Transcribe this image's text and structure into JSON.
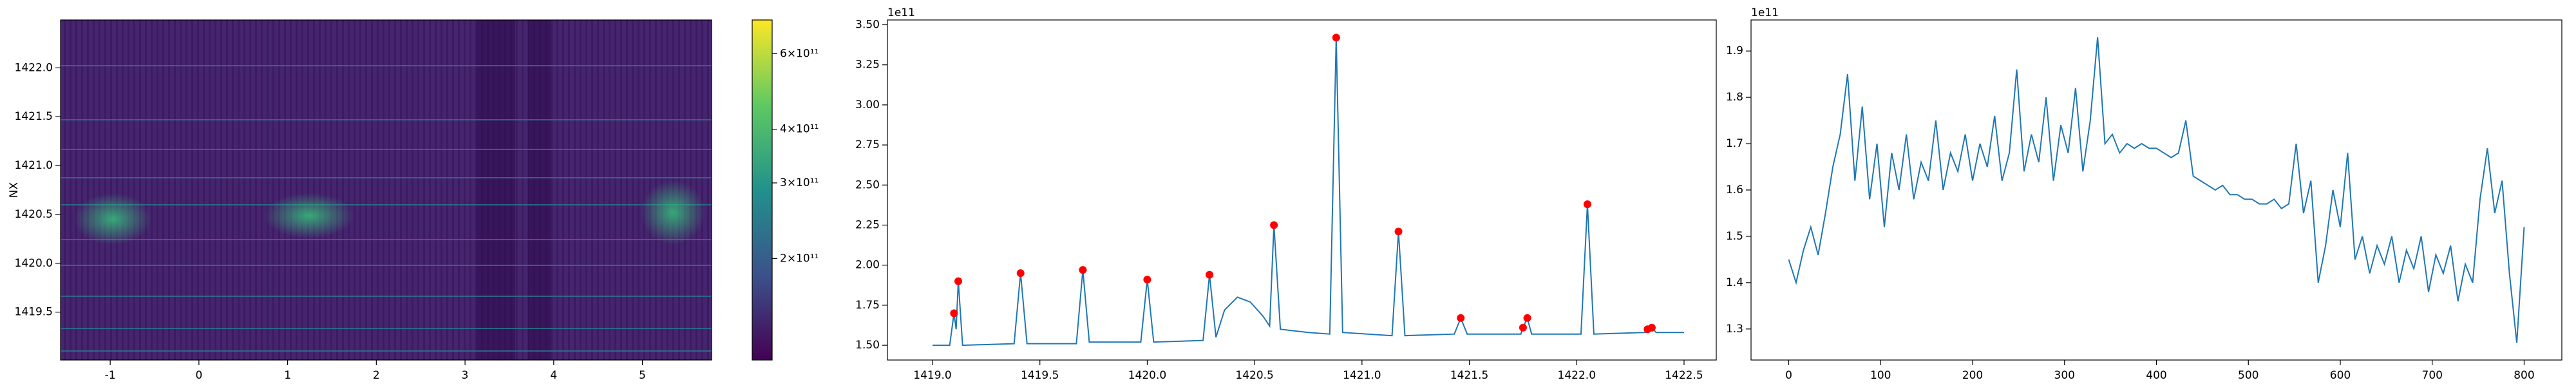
{
  "chart_data": [
    {
      "type": "heatmap",
      "ylabel": "NX",
      "xlim": [
        -1.56,
        5.78
      ],
      "ylim": [
        1419.01,
        1422.49
      ],
      "xticks": [
        -1,
        0,
        1,
        2,
        3,
        4,
        5
      ],
      "yticks": [
        {
          "value": 1419.5,
          "label": "1419.5"
        },
        {
          "value": 1420.0,
          "label": "1420.0"
        },
        {
          "value": 1420.5,
          "label": "1420.5"
        },
        {
          "value": 1421.0,
          "label": "1421.0"
        },
        {
          "value": 1421.5,
          "label": "1421.5"
        },
        {
          "value": 1422.0,
          "label": "1422.0"
        }
      ],
      "colorbar": {
        "log": true,
        "clim": [
          116000000000,
          719000000000
        ],
        "ticks": [
          {
            "value": 200000000000,
            "label": "2×10¹¹"
          },
          {
            "value": 300000000000,
            "label": "3×10¹¹"
          },
          {
            "value": 400000000000,
            "label": "4×10¹¹"
          },
          {
            "value": 600000000000,
            "label": "6×10¹¹"
          }
        ]
      }
    },
    {
      "type": "line",
      "offset_text": "1e11",
      "xlim": [
        1418.79,
        1422.65
      ],
      "ylim": [
        1.408,
        3.53
      ],
      "xticks": [
        {
          "value": 1419.0,
          "label": "1419.0"
        },
        1419.5,
        {
          "value": 1420.0,
          "label": "1420.0"
        },
        1420.5,
        {
          "value": 1421.0,
          "label": "1421.0"
        },
        1421.5,
        {
          "value": 1422.0,
          "label": "1422.0"
        },
        1422.5
      ],
      "yticks": [
        {
          "value": 1.5,
          "label": "1.50"
        },
        {
          "value": 1.75,
          "label": "1.75"
        },
        {
          "value": 2.0,
          "label": "2.00"
        },
        {
          "value": 2.25,
          "label": "2.25"
        },
        {
          "value": 2.5,
          "label": "2.50"
        },
        {
          "value": 2.75,
          "label": "2.75"
        },
        {
          "value": 3.0,
          "label": "3.00"
        },
        {
          "value": 3.25,
          "label": "3.25"
        },
        {
          "value": 3.5,
          "label": "3.50"
        }
      ],
      "series": [
        {
          "color": "#1f77b4",
          "x": [
            1419.0,
            1419.08,
            1419.1,
            1419.11,
            1419.12,
            1419.14,
            1419.38,
            1419.41,
            1419.44,
            1419.67,
            1419.7,
            1419.73,
            1419.97,
            1420.0,
            1420.03,
            1420.26,
            1420.29,
            1420.32,
            1420.36,
            1420.42,
            1420.48,
            1420.54,
            1420.57,
            1420.59,
            1420.62,
            1420.75,
            1420.85,
            1420.88,
            1420.91,
            1421.14,
            1421.17,
            1421.2,
            1421.43,
            1421.46,
            1421.49,
            1421.74,
            1421.75,
            1421.77,
            1421.79,
            1422.02,
            1422.05,
            1422.08,
            1422.32,
            1422.33,
            1422.35,
            1422.37,
            1422.5
          ],
          "values": [
            1.5,
            1.5,
            1.7,
            1.6,
            1.9,
            1.5,
            1.51,
            1.95,
            1.51,
            1.51,
            1.97,
            1.52,
            1.52,
            1.91,
            1.52,
            1.53,
            1.94,
            1.55,
            1.72,
            1.8,
            1.77,
            1.68,
            1.62,
            2.25,
            1.6,
            1.58,
            1.57,
            3.42,
            1.58,
            1.56,
            2.21,
            1.56,
            1.57,
            1.67,
            1.57,
            1.57,
            1.61,
            1.67,
            1.57,
            1.57,
            2.38,
            1.57,
            1.58,
            1.6,
            1.61,
            1.58,
            1.58
          ]
        }
      ],
      "peaks": {
        "color": "#ff0000",
        "x": [
          1419.1,
          1419.12,
          1419.41,
          1419.7,
          1420.0,
          1420.29,
          1420.59,
          1420.88,
          1421.17,
          1421.46,
          1421.75,
          1421.77,
          1422.05,
          1422.33,
          1422.35
        ],
        "values": [
          1.7,
          1.9,
          1.95,
          1.97,
          1.91,
          1.94,
          2.25,
          3.42,
          2.21,
          1.67,
          1.61,
          1.67,
          2.38,
          1.6,
          1.61
        ]
      }
    },
    {
      "type": "line",
      "offset_text": "1e11",
      "xlim": [
        -41,
        841
      ],
      "ylim": [
        1.233,
        1.967
      ],
      "xticks": [
        0,
        100,
        200,
        300,
        400,
        500,
        600,
        700,
        800
      ],
      "yticks": [
        1.3,
        1.4,
        1.5,
        1.6,
        1.7,
        1.8,
        1.9
      ],
      "series": [
        {
          "color": "#1f77b4",
          "x": [
            0,
            8,
            16,
            24,
            32,
            40,
            48,
            56,
            64,
            72,
            80,
            88,
            96,
            104,
            112,
            120,
            128,
            136,
            144,
            152,
            160,
            168,
            176,
            184,
            192,
            200,
            208,
            216,
            224,
            232,
            240,
            248,
            256,
            264,
            272,
            280,
            288,
            296,
            304,
            312,
            320,
            328,
            336,
            344,
            352,
            360,
            368,
            376,
            384,
            392,
            400,
            408,
            416,
            424,
            432,
            440,
            448,
            456,
            464,
            472,
            480,
            488,
            496,
            504,
            512,
            520,
            528,
            536,
            544,
            552,
            560,
            568,
            576,
            584,
            592,
            600,
            608,
            616,
            624,
            632,
            640,
            648,
            656,
            664,
            672,
            680,
            688,
            696,
            704,
            712,
            720,
            728,
            736,
            744,
            752,
            760,
            768,
            776,
            784,
            792,
            800
          ],
          "values": [
            1.45,
            1.4,
            1.47,
            1.52,
            1.46,
            1.55,
            1.65,
            1.72,
            1.85,
            1.62,
            1.78,
            1.58,
            1.7,
            1.52,
            1.68,
            1.6,
            1.72,
            1.58,
            1.66,
            1.62,
            1.75,
            1.6,
            1.68,
            1.64,
            1.72,
            1.62,
            1.7,
            1.65,
            1.76,
            1.62,
            1.68,
            1.86,
            1.64,
            1.72,
            1.66,
            1.8,
            1.62,
            1.74,
            1.68,
            1.82,
            1.64,
            1.75,
            1.93,
            1.7,
            1.72,
            1.68,
            1.7,
            1.69,
            1.7,
            1.69,
            1.69,
            1.68,
            1.67,
            1.68,
            1.75,
            1.63,
            1.62,
            1.61,
            1.6,
            1.61,
            1.59,
            1.59,
            1.58,
            1.58,
            1.57,
            1.57,
            1.58,
            1.56,
            1.57,
            1.7,
            1.55,
            1.62,
            1.4,
            1.48,
            1.6,
            1.52,
            1.68,
            1.45,
            1.5,
            1.42,
            1.48,
            1.44,
            1.5,
            1.4,
            1.47,
            1.43,
            1.5,
            1.38,
            1.46,
            1.42,
            1.48,
            1.36,
            1.44,
            1.4,
            1.58,
            1.69,
            1.55,
            1.62,
            1.42,
            1.27,
            1.52
          ]
        }
      ]
    }
  ]
}
